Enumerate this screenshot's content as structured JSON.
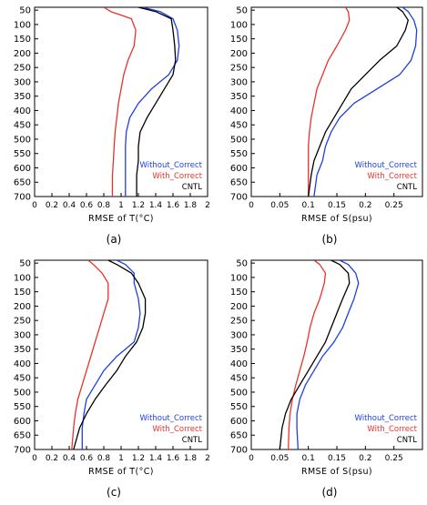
{
  "colors": {
    "cntl": "#000000",
    "without": "#1f3fe0",
    "with": "#e8322a"
  },
  "chart_data": [
    {
      "type": "line",
      "panel_label": "(a)",
      "xlabel": "RMSE of T(°C)",
      "xlim": [
        0,
        2
      ],
      "xticks": [
        "0",
        "0.2",
        "0.4",
        "0.6",
        "0.8",
        "1",
        "1.2",
        "1.4",
        "1.6",
        "1.8",
        "2"
      ],
      "ylim": [
        40,
        700
      ],
      "yticks": [
        "50",
        "100",
        "150",
        "200",
        "250",
        "300",
        "350",
        "400",
        "450",
        "500",
        "550",
        "600",
        "650",
        "700"
      ],
      "y_inverted": true,
      "legend_position": "bottom-right",
      "series": [
        {
          "name": "Without_Correct",
          "key": "without",
          "x": [
            1.25,
            1.45,
            1.6,
            1.65,
            1.67,
            1.65,
            1.55,
            1.35,
            1.2,
            1.1,
            1.06,
            1.05,
            1.05,
            1.05,
            1.05
          ],
          "y": [
            40,
            55,
            80,
            120,
            175,
            225,
            275,
            325,
            375,
            425,
            475,
            525,
            575,
            625,
            700
          ]
        },
        {
          "name": "With_Correct",
          "key": "with",
          "x": [
            0.8,
            0.88,
            1.12,
            1.17,
            1.15,
            1.08,
            1.03,
            1.0,
            0.97,
            0.95,
            0.93,
            0.92,
            0.91,
            0.9,
            0.9
          ],
          "y": [
            40,
            55,
            80,
            120,
            175,
            225,
            275,
            325,
            375,
            425,
            475,
            525,
            575,
            625,
            700
          ]
        },
        {
          "name": "CNTL",
          "key": "cntl",
          "x": [
            1.2,
            1.4,
            1.58,
            1.6,
            1.62,
            1.63,
            1.6,
            1.5,
            1.4,
            1.3,
            1.22,
            1.2,
            1.2,
            1.18,
            1.18
          ],
          "y": [
            40,
            55,
            80,
            120,
            175,
            225,
            275,
            325,
            375,
            425,
            475,
            525,
            575,
            625,
            700
          ]
        }
      ]
    },
    {
      "type": "line",
      "panel_label": "(b)",
      "xlabel": "RMSE of S(psu)",
      "xlim": [
        0,
        0.3
      ],
      "xticks": [
        "0",
        "0.05",
        "0.1",
        "0.15",
        "0.2",
        "0.25"
      ],
      "ylim": [
        40,
        700
      ],
      "yticks": [
        "50",
        "100",
        "150",
        "200",
        "250",
        "300",
        "350",
        "400",
        "450",
        "500",
        "550",
        "600",
        "650",
        "700"
      ],
      "y_inverted": true,
      "legend_position": "bottom-right",
      "series": [
        {
          "name": "Without_Correct",
          "key": "without",
          "x": [
            0.265,
            0.275,
            0.285,
            0.29,
            0.288,
            0.28,
            0.26,
            0.22,
            0.18,
            0.155,
            0.14,
            0.13,
            0.125,
            0.115,
            0.11
          ],
          "y": [
            40,
            55,
            85,
            120,
            175,
            225,
            275,
            325,
            375,
            425,
            475,
            525,
            575,
            625,
            700
          ]
        },
        {
          "name": "With_Correct",
          "key": "with",
          "x": [
            0.165,
            0.17,
            0.172,
            0.165,
            0.15,
            0.135,
            0.125,
            0.115,
            0.11,
            0.105,
            0.102,
            0.1,
            0.1,
            0.1,
            0.1
          ],
          "y": [
            40,
            55,
            85,
            120,
            175,
            225,
            275,
            325,
            375,
            425,
            475,
            525,
            575,
            625,
            700
          ]
        },
        {
          "name": "CNTL",
          "key": "cntl",
          "x": [
            0.255,
            0.265,
            0.275,
            0.27,
            0.255,
            0.225,
            0.2,
            0.175,
            0.16,
            0.145,
            0.13,
            0.12,
            0.11,
            0.105,
            0.1
          ],
          "y": [
            40,
            55,
            85,
            120,
            175,
            225,
            275,
            325,
            375,
            425,
            475,
            525,
            575,
            625,
            700
          ]
        }
      ]
    },
    {
      "type": "line",
      "panel_label": "(c)",
      "xlabel": "RMSE of T(°C)",
      "xlim": [
        0,
        2
      ],
      "xticks": [
        "0",
        "0.2",
        "0.4",
        "0.6",
        "0.8",
        "1",
        "1.2",
        "1.4",
        "1.6",
        "1.8",
        "2"
      ],
      "ylim": [
        40,
        700
      ],
      "yticks": [
        "50",
        "100",
        "150",
        "200",
        "250",
        "300",
        "350",
        "400",
        "450",
        "500",
        "550",
        "600",
        "650",
        "700"
      ],
      "y_inverted": true,
      "legend_position": "bottom-right",
      "series": [
        {
          "name": "Without_Correct",
          "key": "without",
          "x": [
            0.95,
            1.05,
            1.15,
            1.15,
            1.2,
            1.22,
            1.2,
            1.15,
            0.95,
            0.8,
            0.7,
            0.6,
            0.57,
            0.55,
            0.55
          ],
          "y": [
            40,
            55,
            85,
            120,
            175,
            225,
            275,
            325,
            375,
            425,
            475,
            525,
            575,
            625,
            700
          ]
        },
        {
          "name": "With_Correct",
          "key": "with",
          "x": [
            0.62,
            0.68,
            0.78,
            0.85,
            0.85,
            0.8,
            0.75,
            0.7,
            0.65,
            0.6,
            0.55,
            0.5,
            0.47,
            0.45,
            0.43
          ],
          "y": [
            40,
            55,
            85,
            120,
            175,
            225,
            275,
            325,
            375,
            425,
            475,
            525,
            575,
            625,
            700
          ]
        },
        {
          "name": "CNTL",
          "key": "cntl",
          "x": [
            0.85,
            0.95,
            1.12,
            1.2,
            1.28,
            1.28,
            1.25,
            1.18,
            1.05,
            0.95,
            0.82,
            0.7,
            0.6,
            0.52,
            0.45
          ],
          "y": [
            40,
            55,
            85,
            120,
            175,
            225,
            275,
            325,
            375,
            425,
            475,
            525,
            575,
            625,
            700
          ]
        }
      ]
    },
    {
      "type": "line",
      "panel_label": "(d)",
      "xlabel": "RMSE of S(psu)",
      "xlim": [
        0,
        0.3
      ],
      "xticks": [
        "0",
        "0.05",
        "0.1",
        "0.15",
        "0.2",
        "0.25"
      ],
      "ylim": [
        40,
        700
      ],
      "yticks": [
        "50",
        "100",
        "150",
        "200",
        "250",
        "300",
        "350",
        "400",
        "450",
        "500",
        "550",
        "600",
        "650",
        "700"
      ],
      "y_inverted": true,
      "legend_position": "bottom-right",
      "series": [
        {
          "name": "Without_Correct",
          "key": "without",
          "x": [
            0.155,
            0.17,
            0.183,
            0.188,
            0.18,
            0.17,
            0.16,
            0.145,
            0.125,
            0.11,
            0.095,
            0.085,
            0.08,
            0.08,
            0.082
          ],
          "y": [
            40,
            55,
            85,
            120,
            175,
            225,
            275,
            325,
            375,
            425,
            475,
            525,
            575,
            625,
            700
          ]
        },
        {
          "name": "With_Correct",
          "key": "with",
          "x": [
            0.11,
            0.12,
            0.13,
            0.128,
            0.12,
            0.11,
            0.103,
            0.098,
            0.092,
            0.085,
            0.078,
            0.072,
            0.068,
            0.066,
            0.065
          ],
          "y": [
            40,
            55,
            85,
            120,
            175,
            225,
            275,
            325,
            375,
            425,
            475,
            525,
            575,
            625,
            700
          ]
        },
        {
          "name": "CNTL",
          "key": "cntl",
          "x": [
            0.14,
            0.155,
            0.17,
            0.172,
            0.16,
            0.15,
            0.14,
            0.13,
            0.115,
            0.1,
            0.085,
            0.07,
            0.06,
            0.054,
            0.05
          ],
          "y": [
            40,
            55,
            85,
            120,
            175,
            225,
            275,
            325,
            375,
            425,
            475,
            525,
            575,
            625,
            700
          ]
        }
      ]
    }
  ]
}
